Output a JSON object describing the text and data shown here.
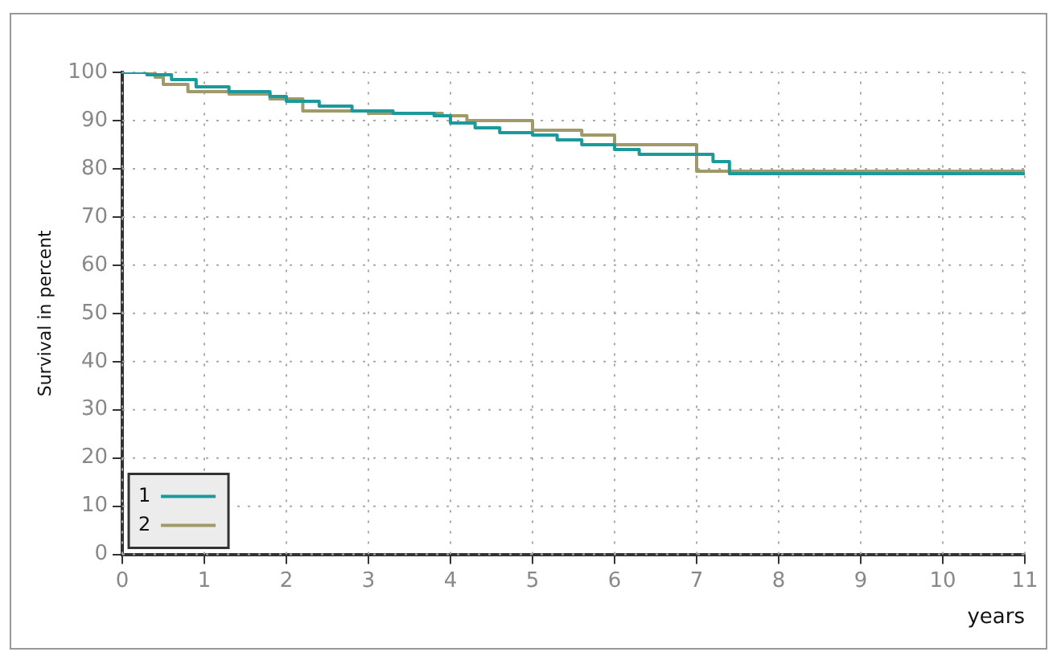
{
  "chart_data": {
    "type": "step",
    "xlabel": "years",
    "ylabel": "Survival in percent",
    "xlim": [
      0,
      11
    ],
    "xticks": [
      0,
      1,
      2,
      3,
      4,
      5,
      6,
      7,
      8,
      9,
      10,
      11
    ],
    "ylim": [
      0,
      100
    ],
    "yticks": [
      0,
      10,
      20,
      30,
      40,
      50,
      60,
      70,
      80,
      90,
      100
    ],
    "grid": true,
    "legend": "bottom left",
    "line_style": "solid",
    "marker": "none",
    "series": [
      {
        "name": "1",
        "color": "#1a9a9a",
        "x": [
          0,
          0.3,
          0.6,
          0.9,
          1.3,
          1.8,
          2.0,
          2.4,
          2.8,
          3.3,
          3.8,
          4.0,
          4.3,
          4.6,
          5.0,
          5.3,
          5.6,
          6.0,
          6.3,
          7.0,
          7.2,
          7.4,
          11
        ],
        "values": [
          100,
          99.5,
          98.5,
          97,
          96,
          95,
          94,
          93,
          92,
          91.5,
          91,
          89.5,
          88.5,
          87.5,
          87,
          86,
          85,
          84,
          83,
          83,
          81.5,
          79,
          79
        ]
      },
      {
        "name": "2",
        "color": "#a09a6a",
        "x": [
          0,
          0.4,
          0.5,
          0.8,
          1.3,
          1.8,
          2.2,
          3.0,
          3.9,
          4.2,
          5.0,
          5.6,
          6.0,
          7.0,
          11
        ],
        "values": [
          100,
          99,
          97.5,
          96,
          95.5,
          94.5,
          92,
          91.5,
          91,
          90,
          88,
          87,
          85,
          79.5,
          79
        ]
      }
    ]
  }
}
